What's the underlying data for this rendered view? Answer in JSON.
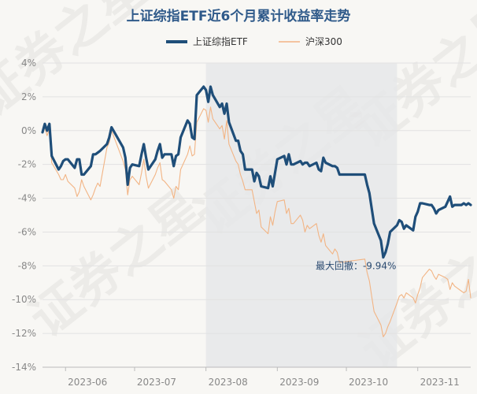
{
  "chart_data": {
    "type": "line",
    "title": "上证综指ETF近6个月累计收益率走势",
    "legend_position": "top-center",
    "grid": "horizontal",
    "y_unit": "%",
    "ylim": [
      -14,
      4
    ],
    "y_ticks": [
      "4%",
      "2%",
      "0%",
      "-2%",
      "-4%",
      "-6%",
      "-8%",
      "-10%",
      "-12%",
      "-14%"
    ],
    "x_tick_labels": [
      "2023-06",
      "2023-07",
      "2023-08",
      "2023-09",
      "2023-10",
      "2023-11"
    ],
    "x_range": [
      "2023-05-22",
      "2023-11-24"
    ],
    "series": [
      {
        "name": "上证综指ETF",
        "color": "#1f4e79",
        "x": [
          "2023-05-22",
          "2023-05-23",
          "2023-05-24",
          "2023-05-25",
          "2023-05-26",
          "2023-05-29",
          "2023-05-30",
          "2023-05-31",
          "2023-06-01",
          "2023-06-02",
          "2023-06-05",
          "2023-06-06",
          "2023-06-07",
          "2023-06-08",
          "2023-06-09",
          "2023-06-12",
          "2023-06-13",
          "2023-06-14",
          "2023-06-15",
          "2023-06-16",
          "2023-06-19",
          "2023-06-20",
          "2023-06-21",
          "2023-06-26",
          "2023-06-27",
          "2023-06-28",
          "2023-06-29",
          "2023-06-30",
          "2023-07-03",
          "2023-07-04",
          "2023-07-05",
          "2023-07-06",
          "2023-07-07",
          "2023-07-10",
          "2023-07-11",
          "2023-07-12",
          "2023-07-13",
          "2023-07-14",
          "2023-07-17",
          "2023-07-18",
          "2023-07-19",
          "2023-07-20",
          "2023-07-21",
          "2023-07-24",
          "2023-07-25",
          "2023-07-26",
          "2023-07-27",
          "2023-07-28",
          "2023-07-31",
          "2023-08-01",
          "2023-08-02",
          "2023-08-03",
          "2023-08-04",
          "2023-08-07",
          "2023-08-08",
          "2023-08-09",
          "2023-08-10",
          "2023-08-11",
          "2023-08-14",
          "2023-08-15",
          "2023-08-16",
          "2023-08-17",
          "2023-08-18",
          "2023-08-21",
          "2023-08-22",
          "2023-08-23",
          "2023-08-24",
          "2023-08-25",
          "2023-08-28",
          "2023-08-29",
          "2023-08-30",
          "2023-08-31",
          "2023-09-01",
          "2023-09-04",
          "2023-09-05",
          "2023-09-06",
          "2023-09-07",
          "2023-09-08",
          "2023-09-11",
          "2023-09-12",
          "2023-09-13",
          "2023-09-14",
          "2023-09-15",
          "2023-09-18",
          "2023-09-19",
          "2023-09-20",
          "2023-09-21",
          "2023-09-22",
          "2023-09-25",
          "2023-09-26",
          "2023-09-27",
          "2023-09-28",
          "2023-10-09",
          "2023-10-10",
          "2023-10-11",
          "2023-10-12",
          "2023-10-13",
          "2023-10-16",
          "2023-10-17",
          "2023-10-18",
          "2023-10-19",
          "2023-10-20",
          "2023-10-23",
          "2023-10-24",
          "2023-10-25",
          "2023-10-26",
          "2023-10-27",
          "2023-10-30",
          "2023-10-31",
          "2023-11-01",
          "2023-11-02",
          "2023-11-03",
          "2023-11-06",
          "2023-11-07",
          "2023-11-08",
          "2023-11-09",
          "2023-11-10",
          "2023-11-13",
          "2023-11-14",
          "2023-11-15",
          "2023-11-16",
          "2023-11-17",
          "2023-11-20",
          "2023-11-21",
          "2023-11-22",
          "2023-11-23",
          "2023-11-24"
        ],
        "values": [
          -0.1,
          0.4,
          0.0,
          0.4,
          -1.5,
          -2.3,
          -2.1,
          -1.8,
          -1.7,
          -1.7,
          -2.2,
          -1.7,
          -1.7,
          -2.6,
          -2.6,
          -2.1,
          -1.4,
          -1.4,
          -1.3,
          -1.2,
          -0.8,
          -0.4,
          0.2,
          -1.0,
          -1.6,
          -3.2,
          -2.2,
          -2.0,
          -2.1,
          -1.4,
          -0.8,
          -1.6,
          -2.3,
          -1.7,
          -1.2,
          -0.8,
          -1.6,
          -1.4,
          -1.4,
          -2.1,
          -1.5,
          -1.4,
          -0.4,
          0.6,
          0.4,
          -0.4,
          -0.5,
          2.1,
          2.6,
          2.4,
          1.7,
          2.6,
          2.1,
          1.4,
          1.6,
          1.0,
          1.6,
          0.5,
          -0.6,
          -0.6,
          -1.2,
          -1.4,
          -2.3,
          -2.3,
          -3.0,
          -2.5,
          -2.7,
          -3.3,
          -3.4,
          -2.7,
          -3.3,
          -2.5,
          -1.7,
          -1.5,
          -2.0,
          -1.4,
          -2.0,
          -2.0,
          -1.8,
          -2.0,
          -1.9,
          -1.9,
          -2.1,
          -1.9,
          -2.3,
          -2.4,
          -1.6,
          -1.9,
          -2.1,
          -2.1,
          -2.2,
          -2.6,
          -2.6,
          -3.2,
          -3.7,
          -4.6,
          -5.5,
          -6.5,
          -7.5,
          -7.2,
          -6.7,
          -6.0,
          -5.6,
          -5.3,
          -5.4,
          -5.8,
          -5.6,
          -5.9,
          -5.1,
          -4.8,
          -4.3,
          -4.3,
          -4.4,
          -4.4,
          -4.6,
          -4.9,
          -4.7,
          -4.5,
          -4.2,
          -3.9,
          -4.5,
          -4.4,
          -4.4,
          -4.3,
          -4.4,
          -4.3,
          -4.4
        ]
      },
      {
        "name": "沪深300",
        "color": "#f2b484",
        "x": [
          "2023-05-22",
          "2023-05-23",
          "2023-05-24",
          "2023-05-25",
          "2023-05-26",
          "2023-05-29",
          "2023-05-30",
          "2023-05-31",
          "2023-06-01",
          "2023-06-02",
          "2023-06-05",
          "2023-06-06",
          "2023-06-07",
          "2023-06-08",
          "2023-06-09",
          "2023-06-12",
          "2023-06-13",
          "2023-06-14",
          "2023-06-15",
          "2023-06-16",
          "2023-06-19",
          "2023-06-20",
          "2023-06-21",
          "2023-06-26",
          "2023-06-27",
          "2023-06-28",
          "2023-06-29",
          "2023-06-30",
          "2023-07-03",
          "2023-07-04",
          "2023-07-05",
          "2023-07-06",
          "2023-07-07",
          "2023-07-10",
          "2023-07-11",
          "2023-07-12",
          "2023-07-13",
          "2023-07-14",
          "2023-07-17",
          "2023-07-18",
          "2023-07-19",
          "2023-07-20",
          "2023-07-21",
          "2023-07-24",
          "2023-07-25",
          "2023-07-26",
          "2023-07-27",
          "2023-07-28",
          "2023-07-31",
          "2023-08-01",
          "2023-08-02",
          "2023-08-03",
          "2023-08-04",
          "2023-08-07",
          "2023-08-08",
          "2023-08-09",
          "2023-08-10",
          "2023-08-11",
          "2023-08-14",
          "2023-08-15",
          "2023-08-16",
          "2023-08-17",
          "2023-08-18",
          "2023-08-21",
          "2023-08-22",
          "2023-08-23",
          "2023-08-24",
          "2023-08-25",
          "2023-08-28",
          "2023-08-29",
          "2023-08-30",
          "2023-08-31",
          "2023-09-01",
          "2023-09-04",
          "2023-09-05",
          "2023-09-06",
          "2023-09-07",
          "2023-09-08",
          "2023-09-11",
          "2023-09-12",
          "2023-09-13",
          "2023-09-14",
          "2023-09-15",
          "2023-09-18",
          "2023-09-19",
          "2023-09-20",
          "2023-09-21",
          "2023-09-22",
          "2023-09-25",
          "2023-09-26",
          "2023-09-27",
          "2023-09-28",
          "2023-10-09",
          "2023-10-10",
          "2023-10-11",
          "2023-10-12",
          "2023-10-13",
          "2023-10-16",
          "2023-10-17",
          "2023-10-18",
          "2023-10-19",
          "2023-10-20",
          "2023-10-23",
          "2023-10-24",
          "2023-10-25",
          "2023-10-26",
          "2023-10-27",
          "2023-10-30",
          "2023-10-31",
          "2023-11-01",
          "2023-11-02",
          "2023-11-03",
          "2023-11-06",
          "2023-11-07",
          "2023-11-08",
          "2023-11-09",
          "2023-11-10",
          "2023-11-13",
          "2023-11-14",
          "2023-11-15",
          "2023-11-16",
          "2023-11-17",
          "2023-11-20",
          "2023-11-21",
          "2023-11-22",
          "2023-11-23",
          "2023-11-24"
        ],
        "values": [
          -0.1,
          0.2,
          -0.3,
          0.1,
          -1.9,
          -2.6,
          -2.9,
          -2.9,
          -2.6,
          -3.0,
          -3.4,
          -3.9,
          -3.6,
          -2.9,
          -3.3,
          -4.1,
          -3.8,
          -3.4,
          -3.1,
          -3.3,
          -1.0,
          -0.7,
          0.0,
          -1.8,
          -2.3,
          -3.8,
          -2.9,
          -2.7,
          -3.2,
          -2.5,
          -1.7,
          -2.7,
          -3.4,
          -2.6,
          -2.2,
          -1.9,
          -2.9,
          -3.0,
          -3.5,
          -4.0,
          -3.3,
          -3.5,
          -2.3,
          -1.4,
          -0.9,
          -1.5,
          -1.4,
          0.5,
          1.3,
          1.2,
          0.5,
          1.4,
          0.7,
          0.1,
          0.3,
          -0.5,
          0.6,
          -0.8,
          -1.8,
          -2.0,
          -2.6,
          -3.0,
          -3.5,
          -3.5,
          -4.2,
          -4.9,
          -4.7,
          -5.7,
          -6.1,
          -5.1,
          -5.6,
          -4.8,
          -4.2,
          -4.1,
          -4.9,
          -4.6,
          -5.5,
          -5.5,
          -5.0,
          -5.3,
          -6.0,
          -5.6,
          -5.8,
          -5.5,
          -6.2,
          -6.6,
          -6.1,
          -6.8,
          -7.3,
          -7.0,
          -7.2,
          -7.8,
          -7.6,
          -8.4,
          -8.9,
          -9.8,
          -10.7,
          -11.5,
          -12.2,
          -12.0,
          -11.6,
          -11.3,
          -10.2,
          -9.8,
          -9.7,
          -9.9,
          -9.6,
          -9.9,
          -10.2,
          -9.7,
          -9.3,
          -8.7,
          -8.2,
          -8.3,
          -8.6,
          -8.8,
          -8.5,
          -8.7,
          -8.8,
          -9.4,
          -9.0,
          -9.2,
          -9.5,
          -9.6,
          -9.5,
          -8.8,
          -9.9
        ]
      }
    ],
    "drawdown": {
      "start": "2023-08-01",
      "end": "2023-10-23",
      "fill": "#e6e8e9",
      "label": "最大回撤：-9.94%"
    },
    "watermark": "证券之星"
  }
}
